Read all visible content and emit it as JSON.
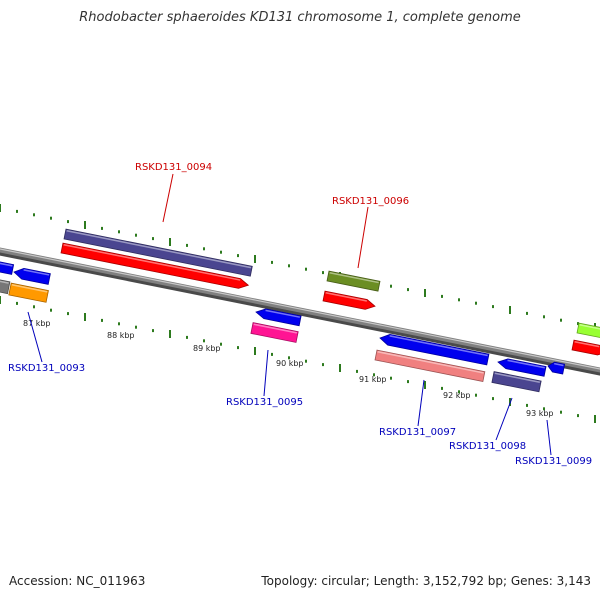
{
  "title": "Rhodobacter sphaeroides KD131 chromosome 1, complete genome",
  "accession": "Accession: NC_011963",
  "summary": "Topology: circular; Length: 3,152,792 bp; Genes: 3,143",
  "tick_labels": [
    "87 kbp",
    "88 kbp",
    "89 kbp",
    "90 kbp",
    "91 kbp",
    "92 kbp",
    "93 kbp"
  ],
  "gene_labels": [
    {
      "id": "RSKD131_0093",
      "strand": "minus",
      "color": "#0000bb"
    },
    {
      "id": "RSKD131_0094",
      "strand": "plus",
      "color": "#cc0000"
    },
    {
      "id": "RSKD131_0095",
      "strand": "minus",
      "color": "#0000bb"
    },
    {
      "id": "RSKD131_0096",
      "strand": "plus",
      "color": "#cc0000"
    },
    {
      "id": "RSKD131_0097",
      "strand": "minus",
      "color": "#0000bb"
    },
    {
      "id": "RSKD131_0098",
      "strand": "minus",
      "color": "#0000bb"
    },
    {
      "id": "RSKD131_0099",
      "strand": "minus",
      "color": "#0000bb"
    }
  ],
  "colors": {
    "backbone": "#808080",
    "ticks": "#2d7a1e",
    "cds_red": "#ff0000",
    "cds_blue": "#0000ee",
    "cds_purple": "#4a4590",
    "cds_olive": "#6b8e23",
    "cds_orange": "#ff9900",
    "cds_pink": "#ff1493",
    "cds_salmon": "#f08080",
    "cds_lime": "#99ff33",
    "cds_gray": "#777777"
  }
}
